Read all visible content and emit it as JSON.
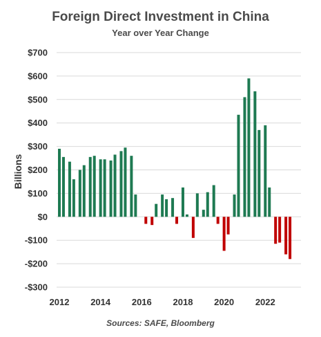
{
  "chart_data": {
    "type": "bar",
    "title": "Foreign Direct Investment in China",
    "subtitle": "Year over Year Change",
    "ylabel": "Billions",
    "xlabel": "",
    "source": "Sources: SAFE, Bloomberg",
    "ylim": [
      -300,
      700
    ],
    "yticks": [
      -300,
      -200,
      -100,
      0,
      100,
      200,
      300,
      400,
      500,
      600,
      700
    ],
    "ytick_labels": [
      "-$300",
      "-$200",
      "-$100",
      "$0",
      "$100",
      "$200",
      "$300",
      "$400",
      "$500",
      "$600",
      "$700"
    ],
    "xlim": [
      2012,
      2023.6
    ],
    "xticks": [
      2012,
      2014,
      2016,
      2018,
      2020,
      2022
    ],
    "xtick_labels": [
      "2012",
      "2014",
      "2016",
      "2018",
      "2020",
      "2022"
    ],
    "grid": true,
    "colors": {
      "positive": "#1e7a52",
      "negative": "#c00000",
      "grid": "#d9d9d9"
    },
    "bars": [
      {
        "x": 2012.0,
        "value": 290
      },
      {
        "x": 2012.2,
        "value": 255
      },
      {
        "x": 2012.5,
        "value": 235
      },
      {
        "x": 2012.7,
        "value": 160
      },
      {
        "x": 2013.0,
        "value": 200
      },
      {
        "x": 2013.2,
        "value": 220
      },
      {
        "x": 2013.5,
        "value": 255
      },
      {
        "x": 2013.7,
        "value": 260
      },
      {
        "x": 2014.0,
        "value": 245
      },
      {
        "x": 2014.2,
        "value": 245
      },
      {
        "x": 2014.5,
        "value": 240
      },
      {
        "x": 2014.7,
        "value": 265
      },
      {
        "x": 2015.0,
        "value": 280
      },
      {
        "x": 2015.2,
        "value": 295
      },
      {
        "x": 2015.5,
        "value": 260
      },
      {
        "x": 2015.7,
        "value": 95
      },
      {
        "x": 2016.2,
        "value": -30
      },
      {
        "x": 2016.5,
        "value": -35
      },
      {
        "x": 2016.7,
        "value": 55
      },
      {
        "x": 2017.0,
        "value": 95
      },
      {
        "x": 2017.2,
        "value": 75
      },
      {
        "x": 2017.5,
        "value": 80
      },
      {
        "x": 2017.7,
        "value": -30
      },
      {
        "x": 2018.0,
        "value": 125
      },
      {
        "x": 2018.2,
        "value": 10
      },
      {
        "x": 2018.5,
        "value": -90
      },
      {
        "x": 2018.7,
        "value": 100
      },
      {
        "x": 2019.0,
        "value": 30
      },
      {
        "x": 2019.2,
        "value": 105
      },
      {
        "x": 2019.5,
        "value": 135
      },
      {
        "x": 2019.7,
        "value": -30
      },
      {
        "x": 2020.0,
        "value": -145
      },
      {
        "x": 2020.2,
        "value": -75
      },
      {
        "x": 2020.5,
        "value": 95
      },
      {
        "x": 2020.7,
        "value": 435
      },
      {
        "x": 2021.0,
        "value": 510
      },
      {
        "x": 2021.2,
        "value": 590
      },
      {
        "x": 2021.5,
        "value": 535
      },
      {
        "x": 2021.7,
        "value": 370
      },
      {
        "x": 2022.0,
        "value": 390
      },
      {
        "x": 2022.2,
        "value": 125
      },
      {
        "x": 2022.5,
        "value": -115
      },
      {
        "x": 2022.7,
        "value": -110
      },
      {
        "x": 2023.0,
        "value": -160
      },
      {
        "x": 2023.2,
        "value": -180
      }
    ]
  }
}
